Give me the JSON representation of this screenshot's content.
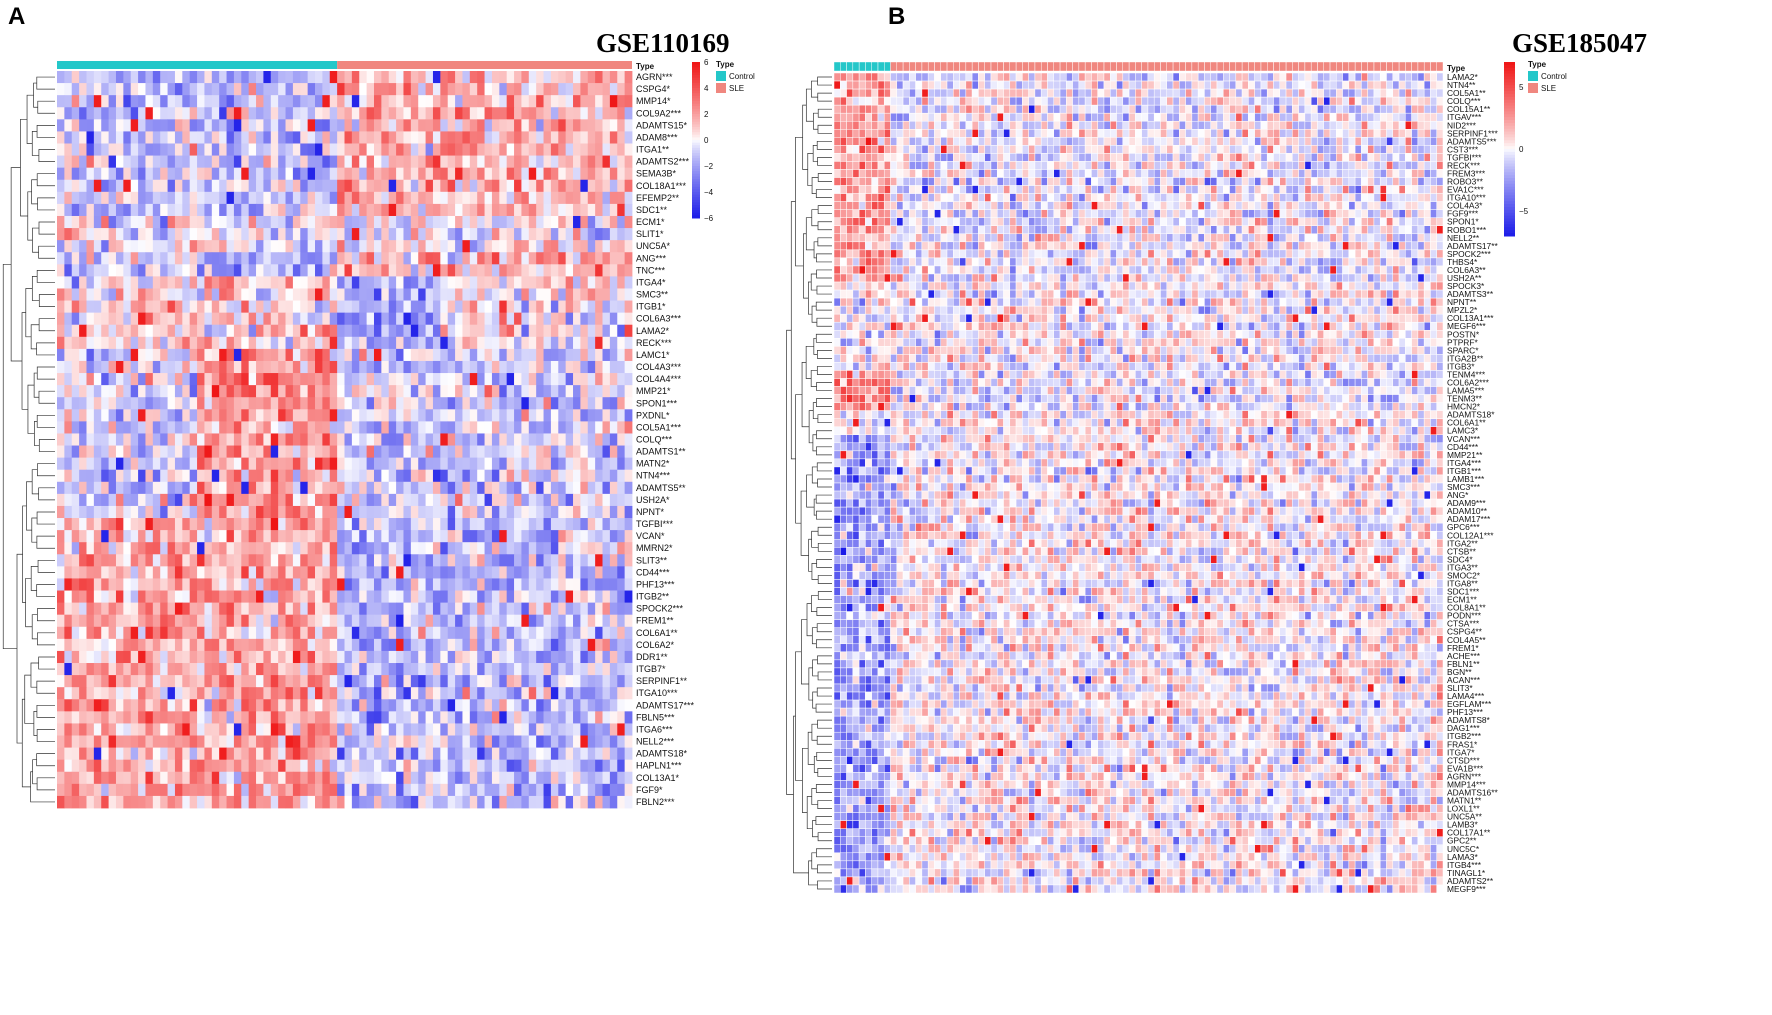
{
  "figure": {
    "panels": [
      "A",
      "B"
    ]
  },
  "chart_data": [
    {
      "type": "heatmap",
      "panel_label": "A",
      "title": "GSE110169",
      "annotation_title": "Type",
      "groups": [
        {
          "name": "Control",
          "color": "#24c7c9",
          "n_samples": 38
        },
        {
          "name": "SLE",
          "color": "#f0877f",
          "n_samples": 40
        }
      ],
      "colorbar": {
        "min": -6,
        "max": 6,
        "ticks": [
          "6",
          "4",
          "2",
          "0",
          "−2",
          "−4",
          "−6"
        ],
        "low_color": "#1c1ce8",
        "mid_color": "#ffffff",
        "high_color": "#ef1515"
      },
      "row_labels": [
        "AGRN***",
        "CSPG4*",
        "MMP14*",
        "COL9A2***",
        "ADAMTS15*",
        "ADAM8***",
        "ITGA1**",
        "ADAMTS2***",
        "SEMA3B*",
        "COL18A1***",
        "EFEMP2**",
        "SDC1**",
        "ECM1*",
        "SLIT1*",
        "UNC5A*",
        "ANG***",
        "TNC***",
        "ITGA4*",
        "SMC3**",
        "ITGB1*",
        "COL6A3***",
        "LAMA2*",
        "RECK***",
        "LAMC1*",
        "COL4A3***",
        "COL4A4***",
        "MMP21*",
        "SPON1***",
        "PXDNL*",
        "COL5A1***",
        "COLQ***",
        "ADAMTS1**",
        "MATN2*",
        "NTN4***",
        "ADAMTS5**",
        "USH2A*",
        "NPNT*",
        "TGFBI***",
        "VCAN*",
        "MMRN2*",
        "SLIT3**",
        "CD44***",
        "PHF13***",
        "ITGB2**",
        "SPOCK2***",
        "FREM1**",
        "COL6A1**",
        "COL6A2*",
        "DDR1**",
        "ITGB7*",
        "SERPINF1**",
        "ITGA10***",
        "ADAMTS17***",
        "FBLN5***",
        "ITGA6***",
        "NELL2***",
        "ADAMTS18*",
        "HAPLN1***",
        "COL13A1*",
        "FGF9*",
        "FBLN2***"
      ],
      "row_pattern": [
        1,
        1,
        1,
        1,
        1,
        1,
        1,
        1,
        1,
        1,
        1,
        1,
        0,
        0,
        0,
        1,
        1,
        2,
        2,
        2,
        2,
        2,
        2,
        3,
        3,
        3,
        3,
        3,
        3,
        3,
        3,
        3,
        3,
        3,
        3,
        3,
        3,
        -1,
        -1,
        -1,
        -1,
        -1,
        -1,
        -1,
        -1,
        -1,
        -1,
        -1,
        -1,
        -1,
        -1,
        -1,
        -1,
        -1,
        -1,
        -1,
        -1,
        -1,
        -1,
        -1,
        -1
      ],
      "pattern_key": {
        "1": "high in SLE",
        "-1": "high in Control",
        "2": "high in Control, low in first SLE samples",
        "3": "high in late Control samples",
        "0": "mixed"
      },
      "dendrogram": "rows clustered (hierarchical)"
    },
    {
      "type": "heatmap",
      "panel_label": "B",
      "title": "GSE185047",
      "annotation_title": "Type",
      "groups": [
        {
          "name": "Control",
          "color": "#24c7c9",
          "n_samples": 9
        },
        {
          "name": "SLE",
          "color": "#f0877f",
          "n_samples": 88
        }
      ],
      "colorbar": {
        "min": -7,
        "max": 7,
        "ticks": [
          "5",
          "0",
          "−5"
        ],
        "low_color": "#1c1ce8",
        "mid_color": "#ffffff",
        "high_color": "#ef1515"
      },
      "row_labels": [
        "LAMA2*",
        "NTN4**",
        "COL5A1**",
        "COLQ***",
        "COL15A1**",
        "ITGAV***",
        "NID2***",
        "SERPINF1***",
        "ADAMTS5***",
        "CST3***",
        "TGFBI***",
        "RECK***",
        "FREM3***",
        "ROBO3**",
        "EVA1C***",
        "ITGA10***",
        "COL4A3*",
        "FGF9***",
        "SPON1*",
        "ROBO1***",
        "NELL2**",
        "ADAMTS17**",
        "SPOCK2***",
        "THBS4*",
        "COL6A3**",
        "USH2A**",
        "SPOCK3*",
        "ADAMTS3**",
        "NPNT**",
        "MPZL2*",
        "COL13A1***",
        "MEGF6***",
        "POSTN*",
        "PTPRF*",
        "SPARC*",
        "ITGA2B**",
        "ITGB3*",
        "TENM4***",
        "COL6A2***",
        "LAMA5***",
        "TENM3**",
        "HMCN2*",
        "ADAMTS18*",
        "COL6A1**",
        "LAMC3*",
        "VCAN***",
        "CD44***",
        "MMP21**",
        "ITGA4***",
        "ITGB1***",
        "LAMB1***",
        "SMC3***",
        "ANG*",
        "ADAM9***",
        "ADAM10**",
        "ADAM17***",
        "GPC6***",
        "COL12A1***",
        "ITGA2**",
        "CTSB**",
        "SDC4*",
        "ITGA3**",
        "SMOC2*",
        "ITGA8**",
        "SDC1***",
        "ECM1**",
        "COL8A1**",
        "PODN***",
        "CTSA***",
        "CSPG4**",
        "COL4A5**",
        "FREM1*",
        "ACHE***",
        "FBLN1**",
        "BGN**",
        "ACAN***",
        "SLIT3*",
        "LAMA4***",
        "EGFLAM***",
        "PHF13***",
        "ADAMTS8*",
        "DAG1***",
        "ITGB2***",
        "FRAS1*",
        "ITGA7*",
        "CTSD***",
        "EVA1B***",
        "AGRN***",
        "MMP14***",
        "ADAMTS16**",
        "MATN1**",
        "LOXL1**",
        "UNC5A**",
        "LAMB3*",
        "COL17A1**",
        "GPC2**",
        "UNC5C*",
        "LAMA3*",
        "ITGB4***",
        "TINAGL1*",
        "ADAMTS2**",
        "MEGF9***"
      ],
      "row_pattern": [
        1,
        1,
        1,
        1,
        1,
        1,
        1,
        1,
        1,
        1,
        1,
        1,
        1,
        1,
        1,
        1,
        1,
        1,
        1,
        1,
        1,
        1,
        1,
        1,
        1,
        1,
        0,
        0,
        0,
        0,
        0,
        0,
        0,
        0,
        0,
        0,
        0,
        1,
        1,
        1,
        1,
        1,
        0,
        0,
        0,
        -1,
        -1,
        -1,
        -1,
        -1,
        -1,
        -1,
        -1,
        -1,
        -1,
        -1,
        -1,
        -1,
        -1,
        -1,
        -1,
        -1,
        -1,
        -1,
        -1,
        -1,
        -1,
        -1,
        -1,
        -1,
        -1,
        -1,
        -1,
        -1,
        -1,
        -1,
        -1,
        -1,
        -1,
        -1,
        -1,
        -1,
        -1,
        -1,
        -1,
        -1,
        -1,
        -1,
        -1,
        -1,
        -1,
        -1,
        -1,
        -1,
        -1,
        -1,
        -1,
        -1,
        -1,
        -1,
        -1,
        -1
      ],
      "pattern_key": {
        "1": "high in Control",
        "-1": "low in Control",
        "0": "mixed"
      },
      "dendrogram": "rows clustered (hierarchical)"
    }
  ]
}
